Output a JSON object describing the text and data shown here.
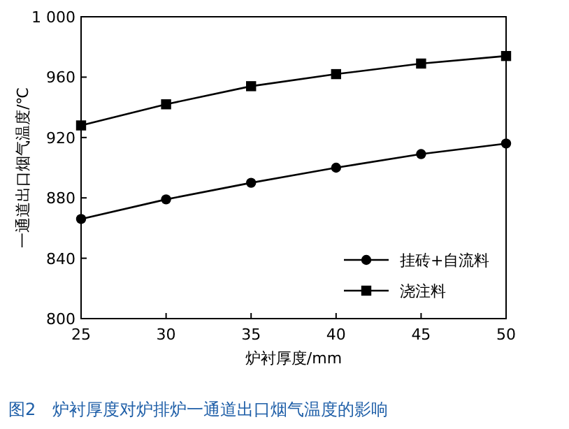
{
  "chart_data": {
    "type": "line",
    "xlabel": "炉衬厚度/mm",
    "ylabel": "一通道出口烟气温度/℃",
    "x": [
      25,
      30,
      35,
      40,
      45,
      50
    ],
    "series": [
      {
        "name": "挂砖+自流料",
        "color": "#000000",
        "marker": "circle",
        "values": [
          866,
          879,
          890,
          900,
          909,
          916
        ]
      },
      {
        "name": "浇注料",
        "color": "#000000",
        "marker": "square",
        "values": [
          928,
          942,
          954,
          962,
          969,
          974
        ]
      }
    ],
    "xlim": [
      25,
      50
    ],
    "xticks": [
      25,
      30,
      35,
      40,
      45,
      50
    ],
    "ylim": [
      800,
      1000
    ],
    "yticks": [
      800,
      840,
      880,
      920,
      960,
      {
        "value": 1000,
        "label": "1 000"
      }
    ],
    "legend": "bottom right",
    "grid": false,
    "line_style": "solid",
    "annotations": [
      "图2　炉衬厚度对炉排炉一通道出口烟气温度的影响"
    ]
  }
}
